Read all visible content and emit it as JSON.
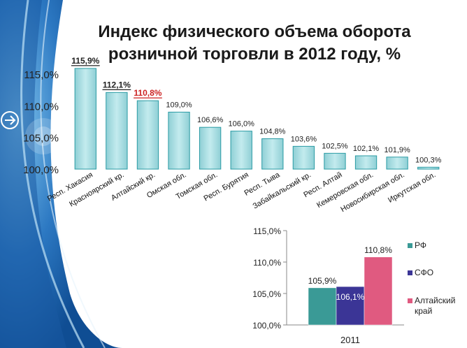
{
  "title_line1": "Индекс физического объема оборота",
  "title_line2": "розничной торговли в 2012 году, %",
  "colors": {
    "bar_fill": "#a9dbdf",
    "bar_edge": "#2a9ba4",
    "teal": "#3a9a96",
    "navy": "#3b3596",
    "pink": "#e05a80",
    "highlight_red": "#cc2222",
    "bg_blue": "#1f5fa8"
  },
  "chart_data": [
    {
      "type": "bar",
      "title": "Индекс физического объема оборота розничной торговли в 2012 году, %",
      "categories": [
        "Респ. Хакасия",
        "Красноярский кр.",
        "Алтайский кр.",
        "Омская обл.",
        "Томская обл.",
        "Респ. Бурятия",
        "Респ. Тыва",
        "Забайкальский кр.",
        "Респ. Алтай",
        "Кемеровская обл.",
        "Новосибирская обл.",
        "Иркутская обл."
      ],
      "values": [
        115.9,
        112.1,
        110.8,
        109.0,
        106.6,
        106.0,
        104.8,
        103.6,
        102.5,
        102.1,
        101.9,
        100.3
      ],
      "value_labels": [
        "115,9%",
        "112,1%",
        "110,8%",
        "109,0%",
        "106,6%",
        "106,0%",
        "104,8%",
        "103,6%",
        "102,5%",
        "102,1%",
        "101,9%",
        "100,3%"
      ],
      "emphasized": [
        true,
        true,
        true,
        false,
        false,
        false,
        false,
        false,
        false,
        false,
        false,
        false
      ],
      "highlighted": [
        false,
        false,
        true,
        false,
        false,
        false,
        false,
        false,
        false,
        false,
        false,
        false
      ],
      "ylim": [
        100,
        116
      ],
      "yticks": [
        100,
        105,
        110,
        115
      ],
      "ytick_labels": [
        "100,0%",
        "105,0%",
        "110,0%",
        "115,0%"
      ],
      "grid": false
    },
    {
      "type": "bar",
      "categories": [
        "2011"
      ],
      "series": [
        {
          "name": "РФ",
          "values": [
            105.9
          ],
          "label": "105,9%",
          "color": "#3a9a96"
        },
        {
          "name": "СФО",
          "values": [
            106.1
          ],
          "label": "106,1%",
          "color": "#3b3596"
        },
        {
          "name": "Алтайский край",
          "values": [
            110.8
          ],
          "label": "110,8%",
          "color": "#e05a80"
        }
      ],
      "ylim": [
        100,
        115
      ],
      "yticks": [
        100,
        105,
        110,
        115
      ],
      "ytick_labels": [
        "100,0%",
        "105,0%",
        "110,0%",
        "115,0%"
      ],
      "legend": "right",
      "grid": false
    }
  ]
}
